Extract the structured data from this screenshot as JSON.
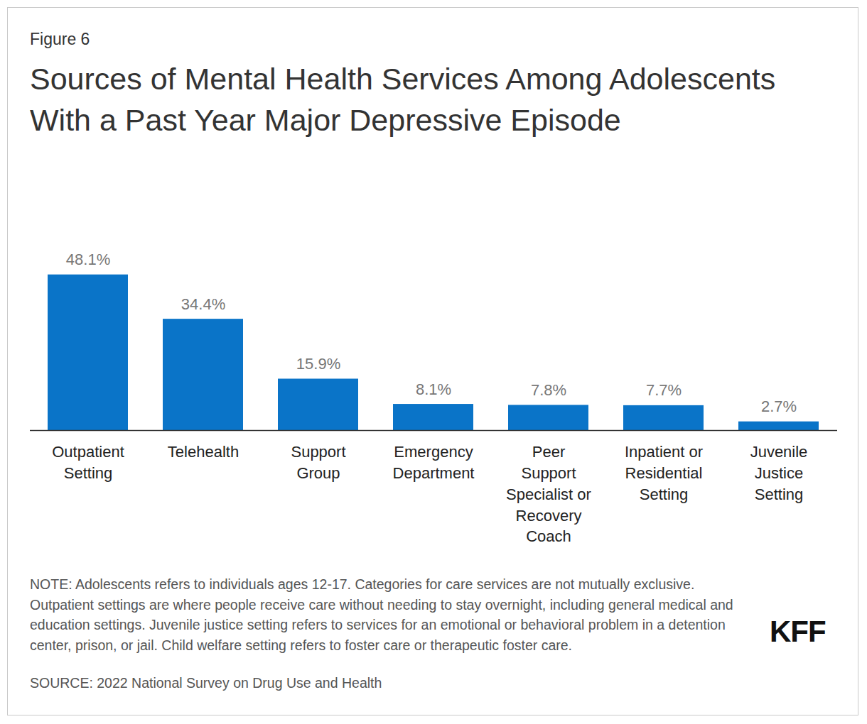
{
  "chart_data": {
    "type": "bar",
    "figure_label": "Figure 6",
    "title": "Sources of Mental Health Services Among Adolescents With a Past Year Major Depressive Episode",
    "categories": [
      "Outpatient Setting",
      "Telehealth",
      "Support Group",
      "Emergency Department",
      "Peer Support Specialist or Recovery Coach",
      "Inpatient or Residential Setting",
      "Juvenile Justice Setting"
    ],
    "values": [
      48.1,
      34.4,
      15.9,
      8.1,
      7.8,
      7.7,
      2.7
    ],
    "value_labels": [
      "48.1%",
      "34.4%",
      "15.9%",
      "8.1%",
      "7.8%",
      "7.7%",
      "2.7%"
    ],
    "data_labels": true,
    "color": "#0a74c8",
    "ylim": [
      0,
      50
    ],
    "yticks": [],
    "tick_labels": "x",
    "grid": false,
    "note": "NOTE: Adolescents refers to individuals ages 12-17. Categories for care services are not mutually exclusive. Outpatient settings are where people receive care without needing to stay overnight, including general medical and education settings. Juvenile justice setting refers to services for an emotional or behavioral problem in a detention center, prison, or jail. Child welfare setting refers to foster care or therapeutic foster care.",
    "source": "SOURCE: 2022 National Survey on Drug Use and Health",
    "logo": "KFF"
  }
}
